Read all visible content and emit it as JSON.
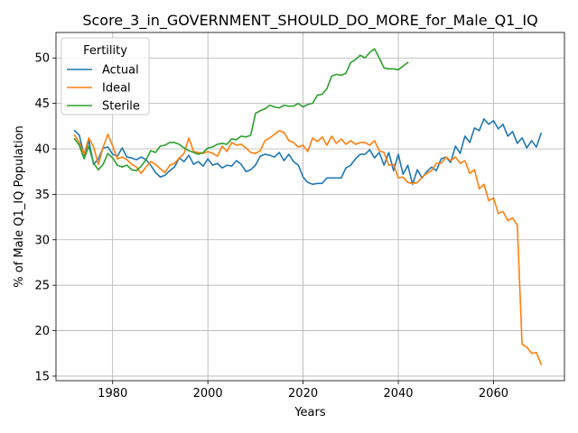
{
  "chart_data": {
    "type": "line",
    "title": "Score_3_in_GOVERNMENT_SHOULD_DO_MORE_for_Male_Q1_IQ",
    "xlabel": "Years",
    "ylabel": "% of Male Q1_IQ Population",
    "xlim": [
      1968.1,
      2074.9
    ],
    "ylim": [
      14.5,
      52.8
    ],
    "xticks": [
      1980,
      2000,
      2020,
      2040,
      2060
    ],
    "yticks": [
      15,
      20,
      25,
      30,
      35,
      40,
      45,
      50
    ],
    "grid": true,
    "legend": {
      "title": "Fertility",
      "placement": "upper-left"
    },
    "series": [
      {
        "name": "Actual",
        "color": "#1f77b4",
        "x": [
          1972,
          1973,
          1974,
          1975,
          1976,
          1977,
          1978,
          1979,
          1980,
          1981,
          1982,
          1983,
          1984,
          1985,
          1986,
          1987,
          1988,
          1989,
          1990,
          1991,
          1992,
          1993,
          1994,
          1995,
          1996,
          1997,
          1998,
          1999,
          2000,
          2001,
          2002,
          2003,
          2004,
          2005,
          2006,
          2007,
          2008,
          2009,
          2010,
          2011,
          2012,
          2013,
          2014,
          2015,
          2016,
          2017,
          2018,
          2019,
          2020,
          2021,
          2022,
          2023,
          2024,
          2025,
          2026,
          2027,
          2028,
          2029,
          2030,
          2031,
          2032,
          2033,
          2034,
          2035,
          2036,
          2037,
          2038,
          2039,
          2040,
          2041,
          2042,
          2043,
          2044,
          2045,
          2046,
          2047,
          2048,
          2049,
          2050,
          2051,
          2052,
          2053,
          2054,
          2055,
          2056,
          2057,
          2058,
          2059,
          2060,
          2061,
          2062,
          2063,
          2064,
          2065,
          2066,
          2067,
          2068,
          2069,
          2070
        ],
        "values": [
          42.0,
          41.5,
          39.3,
          40.9,
          38.3,
          38.9,
          40.1,
          40.2,
          39.4,
          39.2,
          40.1,
          39.1,
          39.0,
          38.8,
          39.1,
          38.8,
          38.2,
          37.4,
          36.9,
          37.1,
          37.6,
          38.0,
          39.0,
          38.6,
          39.3,
          38.3,
          38.6,
          38.1,
          38.9,
          38.2,
          38.4,
          37.9,
          38.2,
          38.1,
          38.7,
          38.3,
          37.5,
          37.7,
          38.2,
          39.2,
          39.4,
          39.3,
          39.1,
          39.6,
          38.7,
          39.4,
          38.6,
          38.2,
          36.9,
          36.3,
          36.1,
          36.2,
          36.2,
          36.8,
          36.8,
          36.8,
          36.8,
          37.9,
          38.2,
          38.9,
          39.4,
          39.4,
          39.9,
          39.0,
          39.6,
          38.2,
          39.6,
          37.6,
          39.4,
          37.2,
          38.2,
          36.1,
          37.7,
          36.8,
          37.5,
          38.0,
          37.6,
          38.9,
          39.1,
          38.5,
          40.3,
          39.5,
          41.4,
          40.7,
          42.3,
          42.0,
          43.3,
          42.7,
          43.1,
          42.2,
          42.7,
          41.4,
          41.9,
          40.6,
          41.2,
          40.1,
          40.9,
          40.2,
          41.7
        ]
      },
      {
        "name": "Ideal",
        "color": "#ff7f0e",
        "x": [
          1972,
          1973,
          1974,
          1975,
          1976,
          1977,
          1978,
          1979,
          1980,
          1981,
          1982,
          1983,
          1984,
          1985,
          1986,
          1987,
          1988,
          1989,
          1990,
          1991,
          1992,
          1993,
          1994,
          1995,
          1996,
          1997,
          1998,
          1999,
          2000,
          2001,
          2002,
          2003,
          2004,
          2005,
          2006,
          2007,
          2008,
          2009,
          2010,
          2011,
          2012,
          2013,
          2014,
          2015,
          2016,
          2017,
          2018,
          2019,
          2020,
          2021,
          2022,
          2023,
          2024,
          2025,
          2026,
          2027,
          2028,
          2029,
          2030,
          2031,
          2032,
          2033,
          2034,
          2035,
          2036,
          2037,
          2038,
          2039,
          2040,
          2041,
          2042,
          2043,
          2044,
          2045,
          2046,
          2047,
          2048,
          2049,
          2050,
          2051,
          2052,
          2053,
          2054,
          2055,
          2056,
          2057,
          2058,
          2059,
          2060,
          2061,
          2062,
          2063,
          2064,
          2065,
          2066,
          2067,
          2068,
          2069,
          2070
        ],
        "values": [
          41.5,
          40.7,
          39.4,
          41.2,
          40.2,
          38.3,
          40.2,
          41.6,
          40.3,
          38.9,
          39.1,
          38.8,
          38.3,
          38.0,
          37.3,
          38.0,
          38.6,
          38.3,
          37.8,
          37.4,
          38.2,
          38.4,
          39.0,
          39.5,
          41.2,
          39.7,
          39.6,
          39.5,
          39.7,
          39.5,
          39.2,
          40.3,
          39.7,
          40.7,
          40.4,
          40.5,
          40.1,
          39.6,
          39.5,
          39.8,
          40.9,
          41.2,
          41.6,
          42.0,
          41.8,
          40.9,
          40.7,
          40.2,
          40.4,
          39.7,
          41.2,
          40.8,
          41.3,
          40.4,
          41.4,
          40.6,
          41.1,
          40.5,
          40.9,
          40.5,
          40.7,
          40.7,
          40.4,
          40.9,
          39.8,
          39.6,
          38.2,
          38.3,
          36.8,
          36.9,
          36.3,
          36.2,
          36.3,
          36.9,
          37.3,
          37.6,
          38.4,
          38.4,
          39.1,
          38.7,
          39.1,
          38.4,
          38.7,
          37.3,
          37.7,
          35.6,
          36.1,
          34.3,
          34.6,
          32.9,
          33.1,
          32.1,
          32.4,
          31.6,
          18.5,
          18.2,
          17.5,
          17.6,
          16.3
        ]
      },
      {
        "name": "Sterile",
        "color": "#2ca02c",
        "x": [
          1972,
          1973,
          1974,
          1975,
          1976,
          1977,
          1978,
          1979,
          1980,
          1981,
          1982,
          1983,
          1984,
          1985,
          1986,
          1987,
          1988,
          1989,
          1990,
          1991,
          1992,
          1993,
          1994,
          1995,
          1996,
          1997,
          1998,
          1999,
          2000,
          2001,
          2002,
          2003,
          2004,
          2005,
          2006,
          2007,
          2008,
          2009,
          2010,
          2011,
          2012,
          2013,
          2014,
          2015,
          2016,
          2017,
          2018,
          2019,
          2020,
          2021,
          2022,
          2023,
          2024,
          2025,
          2026,
          2027,
          2028,
          2029,
          2030,
          2031,
          2032,
          2033,
          2034,
          2035,
          2036,
          2037,
          2038,
          2039,
          2040,
          2041,
          2042
        ],
        "values": [
          41.1,
          40.4,
          38.9,
          40.3,
          38.4,
          37.7,
          38.3,
          39.5,
          39.0,
          38.2,
          38.0,
          38.2,
          37.7,
          37.6,
          38.1,
          38.8,
          39.8,
          39.6,
          40.3,
          40.4,
          40.7,
          40.7,
          40.5,
          40.1,
          39.8,
          39.6,
          39.4,
          39.6,
          40.1,
          40.2,
          40.5,
          40.6,
          40.5,
          41.1,
          41.0,
          41.4,
          41.3,
          41.5,
          43.9,
          44.2,
          44.4,
          44.8,
          44.6,
          44.5,
          44.8,
          44.7,
          44.7,
          45.0,
          44.6,
          44.9,
          45.0,
          45.9,
          46.0,
          46.6,
          48.0,
          48.2,
          48.1,
          48.3,
          49.5,
          49.8,
          50.3,
          50.0,
          50.6,
          51.0,
          50.0,
          48.9,
          48.8,
          48.8,
          48.7,
          49.1,
          49.5
        ]
      }
    ]
  }
}
